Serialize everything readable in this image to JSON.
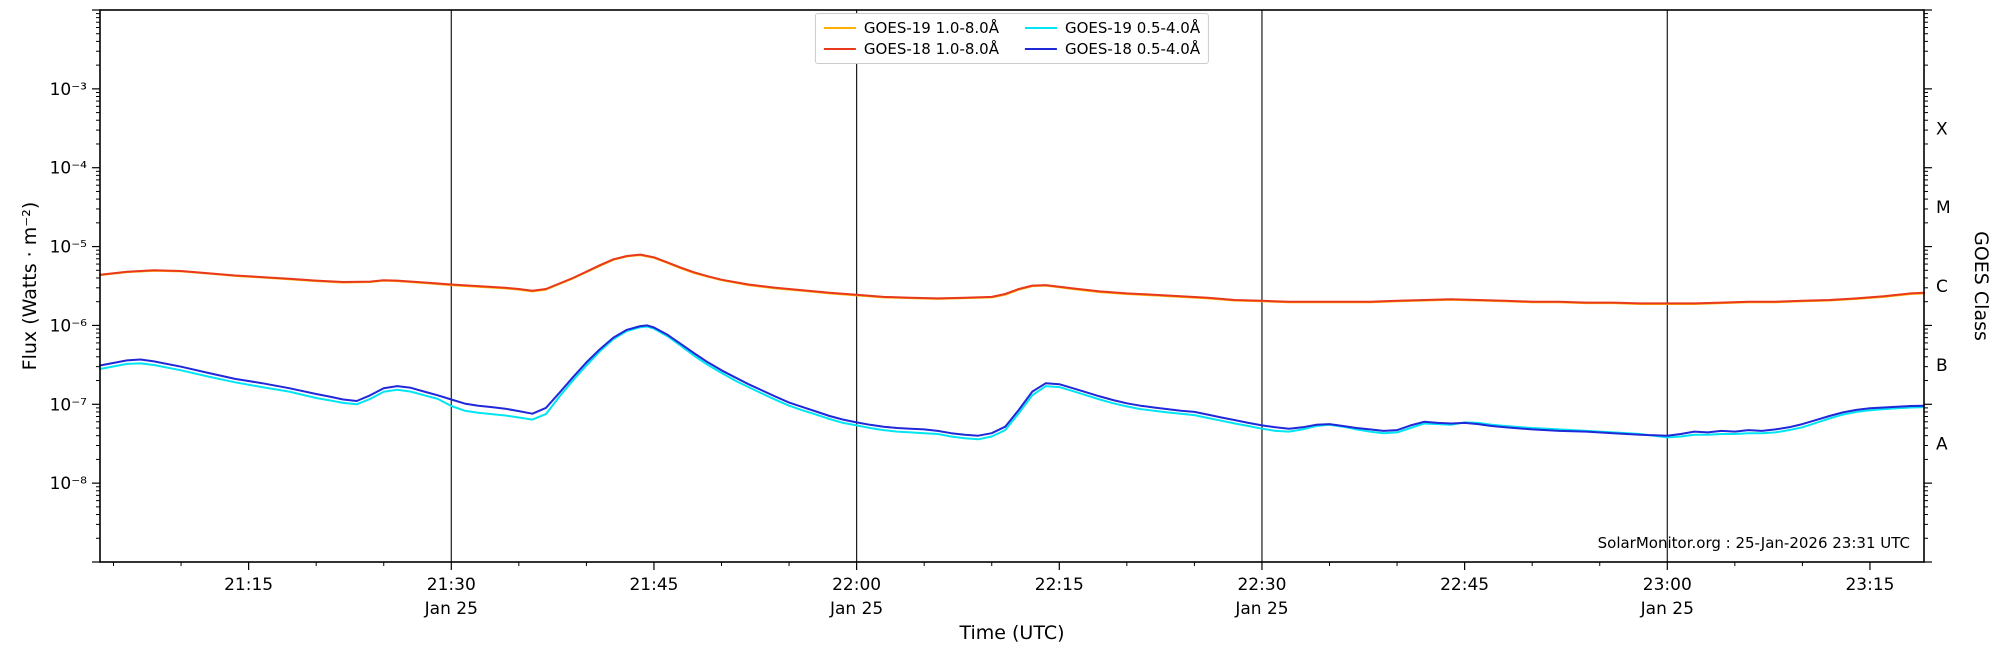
{
  "watermark": "SolarMonitor.org : 25-Jan-2026 23:31 UTC",
  "chart_data": {
    "type": "line",
    "title": "",
    "xlabel": "Time (UTC)",
    "ylabel": "Flux (Watts · m⁻²)",
    "ylabel_right": "GOES Class",
    "x_unit": "minutes after 21:00 UTC on 25-Jan-2026",
    "xlim": [
      4,
      139
    ],
    "ylim_log10": [
      -9,
      -2
    ],
    "grid": false,
    "legend_position": "upper center",
    "x_minor_step": 5,
    "vlines": [
      30,
      60,
      90,
      120
    ],
    "vline_color": "#1a1a1a",
    "xticks": [
      {
        "t": 15,
        "label": "21:15"
      },
      {
        "t": 30,
        "label": "21:30",
        "sublabel": "Jan 25"
      },
      {
        "t": 45,
        "label": "21:45"
      },
      {
        "t": 60,
        "label": "22:00",
        "sublabel": "Jan 25"
      },
      {
        "t": 75,
        "label": "22:15"
      },
      {
        "t": 90,
        "label": "22:30",
        "sublabel": "Jan 25"
      },
      {
        "t": 105,
        "label": "22:45"
      },
      {
        "t": 120,
        "label": "23:00",
        "sublabel": "Jan 25"
      },
      {
        "t": 135,
        "label": "23:15"
      }
    ],
    "yticks": [
      {
        "exp": -3,
        "label": "10⁻³"
      },
      {
        "exp": -4,
        "label": "10⁻⁴"
      },
      {
        "exp": -5,
        "label": "10⁻⁵"
      },
      {
        "exp": -6,
        "label": "10⁻⁶"
      },
      {
        "exp": -7,
        "label": "10⁻⁷"
      },
      {
        "exp": -8,
        "label": "10⁻⁸"
      }
    ],
    "goes_classes": [
      {
        "label": "X",
        "log10": -3.5
      },
      {
        "label": "M",
        "log10": -4.5
      },
      {
        "label": "C",
        "log10": -5.5
      },
      {
        "label": "B",
        "log10": -6.5
      },
      {
        "label": "A",
        "log10": -7.5
      }
    ],
    "series": [
      {
        "name": "GOES-19 1.0-8.0Å",
        "color": "#ffb000",
        "x": [
          4,
          6,
          8,
          10,
          12,
          14,
          16,
          18,
          20,
          22,
          24,
          25,
          26,
          28,
          30,
          32,
          34,
          35,
          36,
          37,
          38,
          39,
          40,
          41,
          42,
          43,
          44,
          45,
          46,
          47,
          48,
          49,
          50,
          52,
          54,
          56,
          58,
          60,
          62,
          64,
          66,
          68,
          70,
          71,
          72,
          73,
          74,
          75,
          76,
          78,
          80,
          82,
          84,
          86,
          88,
          90,
          92,
          94,
          96,
          98,
          100,
          102,
          104,
          106,
          108,
          110,
          112,
          114,
          116,
          118,
          120,
          122,
          124,
          126,
          128,
          130,
          132,
          134,
          136,
          138,
          139
        ],
        "y": [
          4.35e-06,
          4.75e-06,
          4.95e-06,
          4.85e-06,
          4.55e-06,
          4.25e-06,
          4.05e-06,
          3.85e-06,
          3.65e-06,
          3.5e-06,
          3.55e-06,
          3.7e-06,
          3.65e-06,
          3.45e-06,
          3.25e-06,
          3.1e-06,
          2.95e-06,
          2.85e-06,
          2.7e-06,
          2.85e-06,
          3.35e-06,
          3.95e-06,
          4.75e-06,
          5.7e-06,
          6.8e-06,
          7.5e-06,
          7.8e-06,
          7.2e-06,
          6.2e-06,
          5.3e-06,
          4.6e-06,
          4.15e-06,
          3.75e-06,
          3.25e-06,
          2.95e-06,
          2.75e-06,
          2.55e-06,
          2.4e-06,
          2.27e-06,
          2.22e-06,
          2.17e-06,
          2.22e-06,
          2.27e-06,
          2.45e-06,
          2.85e-06,
          3.15e-06,
          3.2e-06,
          3.05e-06,
          2.9e-06,
          2.65e-06,
          2.5e-06,
          2.4e-06,
          2.3e-06,
          2.2e-06,
          2.07e-06,
          2.02e-06,
          1.97e-06,
          1.97e-06,
          1.97e-06,
          1.97e-06,
          2.02e-06,
          2.07e-06,
          2.12e-06,
          2.07e-06,
          2.02e-06,
          1.97e-06,
          1.97e-06,
          1.92e-06,
          1.92e-06,
          1.87e-06,
          1.87e-06,
          1.87e-06,
          1.92e-06,
          1.97e-06,
          1.97e-06,
          2.02e-06,
          2.07e-06,
          2.17e-06,
          2.3e-06,
          2.5e-06,
          2.55e-06
        ]
      },
      {
        "name": "GOES-18 1.0-8.0Å",
        "color": "#e8391c",
        "x": [
          4,
          6,
          8,
          10,
          12,
          14,
          16,
          18,
          20,
          22,
          24,
          25,
          26,
          28,
          30,
          32,
          34,
          35,
          36,
          37,
          38,
          39,
          40,
          41,
          42,
          43,
          44,
          45,
          46,
          47,
          48,
          49,
          50,
          52,
          54,
          56,
          58,
          60,
          62,
          64,
          66,
          68,
          70,
          71,
          72,
          73,
          74,
          75,
          76,
          78,
          80,
          82,
          84,
          86,
          88,
          90,
          92,
          94,
          96,
          98,
          100,
          102,
          104,
          106,
          108,
          110,
          112,
          114,
          116,
          118,
          120,
          122,
          124,
          126,
          128,
          130,
          132,
          134,
          136,
          138,
          139
        ],
        "y": [
          4.4e-06,
          4.8e-06,
          5e-06,
          4.9e-06,
          4.6e-06,
          4.3e-06,
          4.1e-06,
          3.9e-06,
          3.7e-06,
          3.55e-06,
          3.6e-06,
          3.75e-06,
          3.7e-06,
          3.5e-06,
          3.3e-06,
          3.15e-06,
          3e-06,
          2.9e-06,
          2.75e-06,
          2.9e-06,
          3.4e-06,
          4e-06,
          4.8e-06,
          5.8e-06,
          6.9e-06,
          7.6e-06,
          7.9e-06,
          7.3e-06,
          6.3e-06,
          5.4e-06,
          4.7e-06,
          4.2e-06,
          3.8e-06,
          3.3e-06,
          3e-06,
          2.8e-06,
          2.6e-06,
          2.45e-06,
          2.3e-06,
          2.25e-06,
          2.2e-06,
          2.25e-06,
          2.3e-06,
          2.5e-06,
          2.9e-06,
          3.2e-06,
          3.25e-06,
          3.1e-06,
          2.95e-06,
          2.7e-06,
          2.55e-06,
          2.45e-06,
          2.35e-06,
          2.25e-06,
          2.1e-06,
          2.05e-06,
          2e-06,
          2e-06,
          2e-06,
          2e-06,
          2.05e-06,
          2.1e-06,
          2.15e-06,
          2.1e-06,
          2.05e-06,
          2e-06,
          2e-06,
          1.95e-06,
          1.95e-06,
          1.9e-06,
          1.9e-06,
          1.9e-06,
          1.95e-06,
          2e-06,
          2e-06,
          2.05e-06,
          2.1e-06,
          2.2e-06,
          2.35e-06,
          2.55e-06,
          2.6e-06
        ]
      },
      {
        "name": "GOES-19 0.5-4.0Å",
        "color": "#00e5f2",
        "x": [
          4,
          6,
          7,
          8,
          10,
          12,
          14,
          16,
          18,
          20,
          21,
          22,
          23,
          24,
          25,
          26,
          27,
          28,
          29,
          30,
          31,
          32,
          33,
          34,
          35,
          36,
          37,
          38,
          39,
          40,
          41,
          42,
          43,
          44,
          44.5,
          45,
          46,
          47,
          48,
          49,
          50,
          51,
          52,
          53,
          54,
          55,
          56,
          57,
          58,
          59,
          60,
          61,
          62,
          63,
          64,
          65,
          66,
          67,
          68,
          69,
          70,
          71,
          72,
          73,
          74,
          75,
          76,
          77,
          78,
          79,
          80,
          81,
          82,
          83,
          84,
          85,
          86,
          87,
          88,
          89,
          90,
          91,
          92,
          93,
          94,
          95,
          96,
          97,
          98,
          99,
          100,
          101,
          102,
          103,
          104,
          105,
          106,
          107,
          108,
          110,
          112,
          114,
          116,
          118,
          120,
          121,
          122,
          123,
          124,
          125,
          126,
          127,
          128,
          129,
          130,
          131,
          132,
          133,
          134,
          135,
          136,
          137,
          138,
          139
        ],
        "y": [
          2.8e-07,
          3.25e-07,
          3.3e-07,
          3.15e-07,
          2.7e-07,
          2.25e-07,
          1.9e-07,
          1.65e-07,
          1.45e-07,
          1.2e-07,
          1.12e-07,
          1.04e-07,
          1e-07,
          1.17e-07,
          1.44e-07,
          1.53e-07,
          1.45e-07,
          1.3e-07,
          1.17e-07,
          9.5e-08,
          8.3e-08,
          7.8e-08,
          7.5e-08,
          7.2e-08,
          6.8e-08,
          6.4e-08,
          7.5e-08,
          1.25e-07,
          2e-07,
          3.1e-07,
          4.7e-07,
          6.7e-07,
          8.5e-07,
          9.5e-07,
          9.7e-07,
          9.1e-07,
          7.3e-07,
          5.5e-07,
          4.1e-07,
          3.15e-07,
          2.5e-07,
          2e-07,
          1.65e-07,
          1.37e-07,
          1.14e-07,
          9.6e-08,
          8.4e-08,
          7.4e-08,
          6.5e-08,
          5.8e-08,
          5.4e-08,
          5e-08,
          4.7e-08,
          4.5e-08,
          4.4e-08,
          4.3e-08,
          4.2e-08,
          3.9e-08,
          3.7e-08,
          3.6e-08,
          3.9e-08,
          4.7e-08,
          7.7e-08,
          1.3e-07,
          1.7e-07,
          1.65e-07,
          1.47e-07,
          1.3e-07,
          1.15e-07,
          1.03e-07,
          9.4e-08,
          8.7e-08,
          8.3e-08,
          7.9e-08,
          7.6e-08,
          7.3e-08,
          6.7e-08,
          6.2e-08,
          5.7e-08,
          5.3e-08,
          4.9e-08,
          4.6e-08,
          4.5e-08,
          4.8e-08,
          5.3e-08,
          5.5e-08,
          5.2e-08,
          4.8e-08,
          4.5e-08,
          4.3e-08,
          4.4e-08,
          5e-08,
          5.7e-08,
          5.6e-08,
          5.5e-08,
          5.9e-08,
          5.8e-08,
          5.5e-08,
          5.3e-08,
          5e-08,
          4.8e-08,
          4.6e-08,
          4.4e-08,
          4.2e-08,
          3.8e-08,
          3.9e-08,
          4.1e-08,
          4.1e-08,
          4.2e-08,
          4.2e-08,
          4.3e-08,
          4.3e-08,
          4.4e-08,
          4.7e-08,
          5.1e-08,
          5.8e-08,
          6.6e-08,
          7.4e-08,
          8e-08,
          8.4e-08,
          8.7e-08,
          8.9e-08,
          9.1e-08,
          9.2e-08
        ]
      },
      {
        "name": "GOES-18 0.5-4.0Å",
        "color": "#2028d8",
        "x": [
          4,
          6,
          7,
          8,
          10,
          12,
          14,
          16,
          18,
          20,
          21,
          22,
          23,
          24,
          25,
          26,
          27,
          28,
          29,
          30,
          31,
          32,
          33,
          34,
          35,
          36,
          37,
          38,
          39,
          40,
          41,
          42,
          43,
          44,
          44.5,
          45,
          46,
          47,
          48,
          49,
          50,
          51,
          52,
          53,
          54,
          55,
          56,
          57,
          58,
          59,
          60,
          61,
          62,
          63,
          64,
          65,
          66,
          67,
          68,
          69,
          70,
          71,
          72,
          73,
          74,
          75,
          76,
          77,
          78,
          79,
          80,
          81,
          82,
          83,
          84,
          85,
          86,
          87,
          88,
          89,
          90,
          91,
          92,
          93,
          94,
          95,
          96,
          97,
          98,
          99,
          100,
          101,
          102,
          103,
          104,
          105,
          106,
          107,
          108,
          110,
          112,
          114,
          116,
          118,
          120,
          121,
          122,
          123,
          124,
          125,
          126,
          127,
          128,
          129,
          130,
          131,
          132,
          133,
          134,
          135,
          136,
          137,
          138,
          139
        ],
        "y": [
          3.1e-07,
          3.6e-07,
          3.7e-07,
          3.5e-07,
          3e-07,
          2.5e-07,
          2.1e-07,
          1.85e-07,
          1.6e-07,
          1.35e-07,
          1.25e-07,
          1.15e-07,
          1.1e-07,
          1.3e-07,
          1.6e-07,
          1.7e-07,
          1.62e-07,
          1.45e-07,
          1.3e-07,
          1.15e-07,
          1.02e-07,
          9.6e-08,
          9.2e-08,
          8.8e-08,
          8.2e-08,
          7.6e-08,
          9e-08,
          1.4e-07,
          2.2e-07,
          3.4e-07,
          5e-07,
          7e-07,
          8.8e-07,
          9.8e-07,
          1e-06,
          9.4e-07,
          7.6e-07,
          5.8e-07,
          4.4e-07,
          3.4e-07,
          2.7e-07,
          2.2e-07,
          1.8e-07,
          1.5e-07,
          1.25e-07,
          1.05e-07,
          9.2e-08,
          8.1e-08,
          7.1e-08,
          6.4e-08,
          5.9e-08,
          5.5e-08,
          5.2e-08,
          5e-08,
          4.9e-08,
          4.8e-08,
          4.6e-08,
          4.3e-08,
          4.1e-08,
          4e-08,
          4.3e-08,
          5.2e-08,
          8.5e-08,
          1.45e-07,
          1.85e-07,
          1.8e-07,
          1.6e-07,
          1.42e-07,
          1.26e-07,
          1.13e-07,
          1.03e-07,
          9.6e-08,
          9.1e-08,
          8.7e-08,
          8.3e-08,
          8e-08,
          7.4e-08,
          6.8e-08,
          6.3e-08,
          5.8e-08,
          5.4e-08,
          5.1e-08,
          4.9e-08,
          5.1e-08,
          5.5e-08,
          5.6e-08,
          5.3e-08,
          5e-08,
          4.8e-08,
          4.6e-08,
          4.7e-08,
          5.4e-08,
          6e-08,
          5.8e-08,
          5.7e-08,
          5.8e-08,
          5.6e-08,
          5.3e-08,
          5.1e-08,
          4.8e-08,
          4.6e-08,
          4.5e-08,
          4.3e-08,
          4.1e-08,
          4e-08,
          4.2e-08,
          4.5e-08,
          4.4e-08,
          4.6e-08,
          4.5e-08,
          4.7e-08,
          4.6e-08,
          4.8e-08,
          5.1e-08,
          5.6e-08,
          6.3e-08,
          7.1e-08,
          7.9e-08,
          8.5e-08,
          8.9e-08,
          9.1e-08,
          9.3e-08,
          9.5e-08,
          9.6e-08
        ]
      }
    ]
  }
}
